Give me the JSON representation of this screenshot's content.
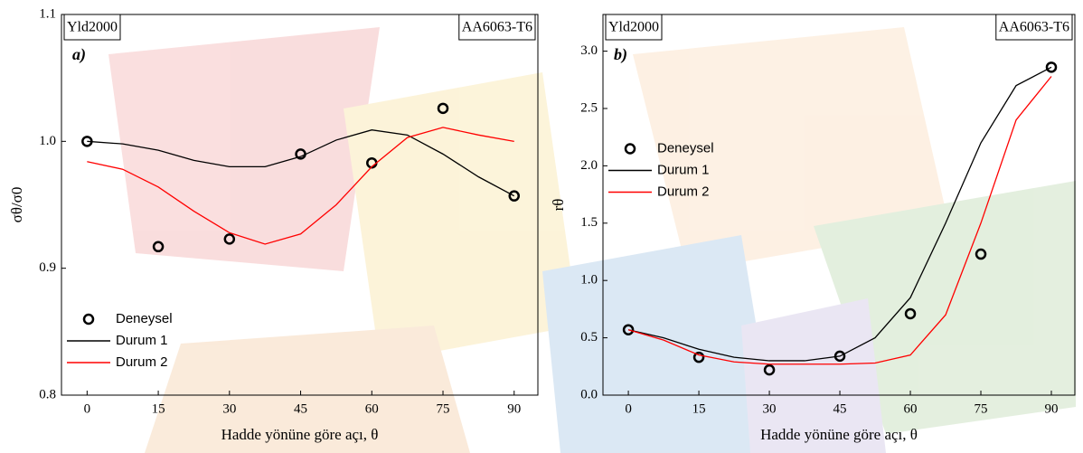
{
  "chart_data": [
    {
      "type": "line",
      "annotations": [
        "Yld2000",
        "AA6063-T6",
        "a)"
      ],
      "xlabel": "Hadde yönüne göre açı, θ",
      "ylabel": "σθ/σ0",
      "xlim": [
        -5.4,
        95
      ],
      "ylim": [
        0.8,
        1.1
      ],
      "xticks": [
        0,
        15,
        30,
        45,
        60,
        75,
        90
      ],
      "yticks": [
        0.8,
        0.9,
        {
          "value": 1,
          "label": "1.0"
        },
        1.1
      ],
      "legend": "lower left",
      "series": [
        {
          "name": "Deneysel",
          "color": "#000000",
          "marker": "o",
          "x": [
            0,
            15,
            30,
            45,
            60,
            75,
            90
          ],
          "values": [
            1.0,
            0.917,
            0.923,
            0.99,
            0.983,
            1.026,
            0.957
          ]
        },
        {
          "name": "Durum 1",
          "color": "#000000",
          "x": [
            0,
            7.5,
            15,
            22.5,
            30,
            37.5,
            45,
            52.5,
            60,
            67.5,
            75,
            82.5,
            90
          ],
          "values": [
            1.0,
            0.998,
            0.993,
            0.985,
            0.98,
            0.98,
            0.988,
            1.001,
            1.009,
            1.005,
            0.99,
            0.972,
            0.957
          ]
        },
        {
          "name": "Durum 2",
          "color": "#ff0000",
          "x": [
            0,
            7.5,
            15,
            22.5,
            30,
            37.5,
            45,
            52.5,
            60,
            67.5,
            75,
            82.5,
            90
          ],
          "values": [
            0.984,
            0.978,
            0.964,
            0.945,
            0.928,
            0.919,
            0.927,
            0.95,
            0.98,
            1.003,
            1.011,
            1.005,
            1.0
          ]
        }
      ]
    },
    {
      "type": "line",
      "annotations": [
        "Yld2000",
        "AA6063-T6",
        "b)"
      ],
      "xlabel": "Hadde yönüne göre açı, θ",
      "ylabel": "rθ",
      "xlim": [
        -5.4,
        95
      ],
      "ylim": [
        0,
        3.32
      ],
      "xticks": [
        0,
        15,
        30,
        45,
        60,
        75,
        90
      ],
      "yticks": [
        {
          "value": 0,
          "label": "0.0"
        },
        0.5,
        {
          "value": 1,
          "label": "1.0"
        },
        1.5,
        {
          "value": 2,
          "label": "2.0"
        },
        2.5,
        {
          "value": 3,
          "label": "3.0"
        }
      ],
      "legend": "center left",
      "series": [
        {
          "name": "Deneysel",
          "color": "#000000",
          "marker": "o",
          "x": [
            0,
            15,
            30,
            45,
            60,
            75,
            90
          ],
          "values": [
            0.57,
            0.33,
            0.22,
            0.34,
            0.71,
            1.23,
            2.86
          ]
        },
        {
          "name": "Durum 1",
          "color": "#000000",
          "x": [
            0,
            7.5,
            15,
            22.5,
            30,
            37.5,
            45,
            52.5,
            60,
            67.5,
            75,
            82.5,
            90
          ],
          "values": [
            0.57,
            0.5,
            0.4,
            0.33,
            0.3,
            0.3,
            0.34,
            0.5,
            0.85,
            1.5,
            2.2,
            2.7,
            2.86
          ]
        },
        {
          "name": "Durum 2",
          "color": "#ff0000",
          "x": [
            0,
            7.5,
            15,
            22.5,
            30,
            37.5,
            45,
            52.5,
            60,
            67.5,
            75,
            82.5,
            90
          ],
          "values": [
            0.57,
            0.48,
            0.35,
            0.29,
            0.27,
            0.27,
            0.27,
            0.28,
            0.35,
            0.7,
            1.5,
            2.4,
            2.78
          ]
        }
      ]
    }
  ]
}
